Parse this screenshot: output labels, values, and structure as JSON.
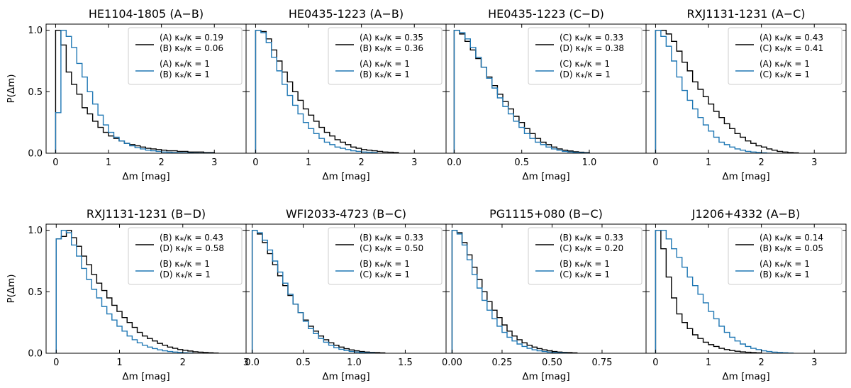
{
  "figure": {
    "shared_xlabel": "Δm [mag]",
    "shared_ylabel": "P(Δm)",
    "series_colors": {
      "black": "#000000",
      "blue": "#1f77b4"
    }
  },
  "chart_data": [
    {
      "type": "histogram-step",
      "title": "HE1104-1805 (A−B)",
      "xlabel": "Δm [mag]",
      "ylabel": "P(Δm)",
      "xlim": [
        -0.18,
        3.6
      ],
      "ylim": [
        0,
        1.05
      ],
      "xticks": [
        0,
        1,
        2,
        3
      ],
      "xtick_labels": [
        "0",
        "1",
        "2",
        "3"
      ],
      "yticks": [
        0,
        0.5,
        1.0
      ],
      "ytick_labels": [
        "0.0",
        "0.5",
        "1.0"
      ],
      "bin_width": 0.1,
      "legend": [
        {
          "series": "black",
          "line1": "(A) κ⁎/κ = 0.19",
          "line2": "(B) κ⁎/κ = 0.06"
        },
        {
          "series": "blue",
          "line1": "(A) κ⁎/κ = 1",
          "line2": "(B) κ⁎/κ = 1"
        }
      ],
      "series": [
        {
          "name": "black",
          "color": "#000000",
          "values": [
            1.0,
            0.88,
            0.66,
            0.56,
            0.48,
            0.37,
            0.32,
            0.26,
            0.21,
            0.17,
            0.14,
            0.12,
            0.1,
            0.08,
            0.07,
            0.06,
            0.05,
            0.04,
            0.035,
            0.03,
            0.025,
            0.02,
            0.02,
            0.015,
            0.015,
            0.01,
            0.01,
            0.01,
            0.005,
            0.005
          ]
        },
        {
          "name": "blue",
          "color": "#1f77b4",
          "values": [
            0.33,
            1.0,
            0.95,
            0.86,
            0.73,
            0.62,
            0.5,
            0.4,
            0.31,
            0.23,
            0.17,
            0.13,
            0.1,
            0.08,
            0.06,
            0.045,
            0.035,
            0.025,
            0.02,
            0.015,
            0.01,
            0.008,
            0.005,
            0.004,
            0.003,
            0.002,
            0.001,
            0.0,
            0.0,
            0.0
          ]
        }
      ]
    },
    {
      "type": "histogram-step",
      "title": "HE0435-1223 (A−B)",
      "xlabel": "Δm [mag]",
      "ylabel": "P(Δm)",
      "xlim": [
        -0.18,
        3.6
      ],
      "ylim": [
        0,
        1.05
      ],
      "xticks": [
        0,
        1,
        2,
        3
      ],
      "xtick_labels": [
        "0",
        "1",
        "2",
        "3"
      ],
      "yticks": [
        0,
        0.5,
        1.0
      ],
      "ytick_labels": [
        "0.0",
        "0.5",
        "1.0"
      ],
      "bin_width": 0.1,
      "legend": [
        {
          "series": "black",
          "line1": "(A) κ⁎/κ = 0.35",
          "line2": "(B) κ⁎/κ = 0.36"
        },
        {
          "series": "blue",
          "line1": "(A) κ⁎/κ = 1",
          "line2": "(B) κ⁎/κ = 1"
        }
      ],
      "series": [
        {
          "name": "black",
          "color": "#000000",
          "values": [
            1.0,
            0.99,
            0.93,
            0.84,
            0.75,
            0.66,
            0.58,
            0.5,
            0.43,
            0.36,
            0.31,
            0.26,
            0.21,
            0.17,
            0.14,
            0.11,
            0.09,
            0.07,
            0.05,
            0.04,
            0.03,
            0.025,
            0.02,
            0.015,
            0.01,
            0.008,
            0.005
          ]
        },
        {
          "name": "blue",
          "color": "#1f77b4",
          "values": [
            1.0,
            0.98,
            0.9,
            0.78,
            0.67,
            0.56,
            0.47,
            0.39,
            0.32,
            0.25,
            0.2,
            0.16,
            0.12,
            0.09,
            0.07,
            0.05,
            0.04,
            0.03,
            0.02,
            0.015,
            0.01,
            0.008,
            0.005
          ]
        }
      ]
    },
    {
      "type": "histogram-step",
      "title": "HE0435-1223 (C−D)",
      "xlabel": "Δm [mag]",
      "ylabel": "P(Δm)",
      "xlim": [
        -0.06,
        1.42
      ],
      "ylim": [
        0,
        1.05
      ],
      "xticks": [
        0.0,
        0.5,
        1.0
      ],
      "xtick_labels": [
        "0.0",
        "0.5",
        "1.0"
      ],
      "yticks": [
        0,
        0.5,
        1.0
      ],
      "ytick_labels": [
        "0.0",
        "0.5",
        "1.0"
      ],
      "bin_width": 0.04,
      "legend": [
        {
          "series": "black",
          "line1": "(C) κ⁎/κ = 0.33",
          "line2": "(D) κ⁎/κ = 0.38"
        },
        {
          "series": "blue",
          "line1": "(C) κ⁎/κ = 1",
          "line2": "(D) κ⁎/κ = 1"
        }
      ],
      "series": [
        {
          "name": "black",
          "color": "#000000",
          "values": [
            1.0,
            0.97,
            0.91,
            0.84,
            0.77,
            0.7,
            0.62,
            0.55,
            0.48,
            0.42,
            0.36,
            0.3,
            0.25,
            0.2,
            0.16,
            0.12,
            0.09,
            0.07,
            0.05,
            0.035,
            0.025,
            0.018,
            0.012,
            0.008,
            0.005
          ]
        },
        {
          "name": "blue",
          "color": "#1f77b4",
          "values": [
            1.0,
            0.98,
            0.93,
            0.86,
            0.78,
            0.7,
            0.61,
            0.53,
            0.45,
            0.38,
            0.32,
            0.26,
            0.21,
            0.16,
            0.12,
            0.09,
            0.07,
            0.05,
            0.035,
            0.025,
            0.015,
            0.01,
            0.006,
            0.004,
            0.002
          ]
        }
      ]
    },
    {
      "type": "histogram-step",
      "title": "RXJ1131-1231 (A−C)",
      "xlabel": "Δm [mag]",
      "ylabel": "P(Δm)",
      "xlim": [
        -0.18,
        3.6
      ],
      "ylim": [
        0,
        1.05
      ],
      "xticks": [
        0,
        1,
        2,
        3
      ],
      "xtick_labels": [
        "0",
        "1",
        "2",
        "3"
      ],
      "yticks": [
        0,
        0.5,
        1.0
      ],
      "ytick_labels": [
        "0.0",
        "0.5",
        "1.0"
      ],
      "bin_width": 0.1,
      "legend": [
        {
          "series": "black",
          "line1": "(A) κ⁎/κ = 0.43",
          "line2": "(C) κ⁎/κ = 0.41"
        },
        {
          "series": "blue",
          "line1": "(A) κ⁎/κ = 1",
          "line2": "(C) κ⁎/κ = 1"
        }
      ],
      "series": [
        {
          "name": "black",
          "color": "#000000",
          "values": [
            1.0,
            1.0,
            0.97,
            0.91,
            0.83,
            0.74,
            0.67,
            0.58,
            0.52,
            0.46,
            0.4,
            0.34,
            0.29,
            0.24,
            0.2,
            0.16,
            0.13,
            0.1,
            0.08,
            0.06,
            0.05,
            0.035,
            0.025,
            0.015,
            0.01,
            0.005,
            0.003
          ]
        },
        {
          "name": "blue",
          "color": "#1f77b4",
          "values": [
            1.0,
            0.95,
            0.87,
            0.75,
            0.62,
            0.51,
            0.43,
            0.36,
            0.29,
            0.23,
            0.18,
            0.13,
            0.09,
            0.07,
            0.05,
            0.035,
            0.025,
            0.015,
            0.01,
            0.006,
            0.003,
            0.0
          ]
        }
      ]
    },
    {
      "type": "histogram-step",
      "title": "RXJ1131-1231 (B−D)",
      "xlabel": "Δm [mag]",
      "ylabel": "P(Δm)",
      "xlim": [
        -0.16,
        3.0
      ],
      "ylim": [
        0,
        1.05
      ],
      "xticks": [
        0,
        1,
        2,
        3
      ],
      "xtick_labels": [
        "0",
        "1",
        "2",
        "3"
      ],
      "yticks": [
        0,
        0.5,
        1.0
      ],
      "ytick_labels": [
        "0.0",
        "0.5",
        "1.0"
      ],
      "bin_width": 0.08,
      "legend": [
        {
          "series": "black",
          "line1": "(B) κ⁎/κ = 0.43",
          "line2": "(D) κ⁎/κ = 0.58"
        },
        {
          "series": "blue",
          "line1": "(B) κ⁎/κ = 1",
          "line2": "(D) κ⁎/κ = 1"
        }
      ],
      "series": [
        {
          "name": "black",
          "color": "#000000",
          "values": [
            0.93,
            0.95,
            1.0,
            0.94,
            0.87,
            0.79,
            0.72,
            0.64,
            0.57,
            0.51,
            0.45,
            0.39,
            0.34,
            0.29,
            0.25,
            0.21,
            0.17,
            0.14,
            0.12,
            0.1,
            0.08,
            0.065,
            0.05,
            0.04,
            0.03,
            0.024,
            0.018,
            0.012,
            0.009,
            0.006,
            0.004,
            0.002
          ]
        },
        {
          "name": "blue",
          "color": "#1f77b4",
          "values": [
            0.93,
            1.0,
            0.98,
            0.88,
            0.79,
            0.69,
            0.6,
            0.52,
            0.45,
            0.38,
            0.32,
            0.27,
            0.22,
            0.18,
            0.14,
            0.11,
            0.085,
            0.065,
            0.05,
            0.038,
            0.028,
            0.02,
            0.014,
            0.01,
            0.007,
            0.004,
            0.002
          ]
        }
      ]
    },
    {
      "type": "histogram-step",
      "title": "WFI2033-4723 (B−C)",
      "xlabel": "Δm [mag]",
      "ylabel": "P(Δm)",
      "xlim": [
        -0.06,
        1.9
      ],
      "ylim": [
        0,
        1.05
      ],
      "xticks": [
        0.0,
        0.5,
        1.0,
        1.5
      ],
      "xtick_labels": [
        "0.0",
        "0.5",
        "1.0",
        "1.5"
      ],
      "yticks": [
        0,
        0.5,
        1.0
      ],
      "ytick_labels": [
        "0.0",
        "0.5",
        "1.0"
      ],
      "bin_width": 0.05,
      "legend": [
        {
          "series": "black",
          "line1": "(B) κ⁎/κ = 0.33",
          "line2": "(C) κ⁎/κ = 0.50"
        },
        {
          "series": "blue",
          "line1": "(B) κ⁎/κ = 1",
          "line2": "(C) κ⁎/κ = 1"
        }
      ],
      "series": [
        {
          "name": "black",
          "color": "#000000",
          "values": [
            1.0,
            0.97,
            0.9,
            0.81,
            0.72,
            0.63,
            0.55,
            0.47,
            0.4,
            0.33,
            0.27,
            0.22,
            0.18,
            0.14,
            0.11,
            0.085,
            0.065,
            0.05,
            0.037,
            0.027,
            0.02,
            0.014,
            0.01,
            0.007,
            0.005,
            0.003
          ]
        },
        {
          "name": "blue",
          "color": "#1f77b4",
          "values": [
            1.0,
            0.98,
            0.92,
            0.84,
            0.75,
            0.66,
            0.57,
            0.48,
            0.4,
            0.33,
            0.26,
            0.2,
            0.16,
            0.12,
            0.09,
            0.065,
            0.045,
            0.032,
            0.022,
            0.015,
            0.01,
            0.006,
            0.004,
            0.002
          ]
        }
      ]
    },
    {
      "type": "histogram-step",
      "title": "PG1115+080 (B−C)",
      "xlabel": "Δm [mag]",
      "ylabel": "P(Δm)",
      "xlim": [
        -0.03,
        0.97
      ],
      "ylim": [
        0,
        1.05
      ],
      "xticks": [
        0.0,
        0.25,
        0.5,
        0.75
      ],
      "xtick_labels": [
        "0.00",
        "0.25",
        "0.50",
        "0.75"
      ],
      "yticks": [
        0,
        0.5,
        1.0
      ],
      "ytick_labels": [
        "0.0",
        "0.5",
        "1.0"
      ],
      "bin_width": 0.025,
      "legend": [
        {
          "series": "black",
          "line1": "(B) κ⁎/κ = 0.33",
          "line2": "(C) κ⁎/κ = 0.20"
        },
        {
          "series": "blue",
          "line1": "(B) κ⁎/κ = 1",
          "line2": "(C) κ⁎/κ = 1"
        }
      ],
      "series": [
        {
          "name": "black",
          "color": "#000000",
          "values": [
            1.0,
            0.98,
            0.9,
            0.8,
            0.7,
            0.6,
            0.5,
            0.42,
            0.35,
            0.29,
            0.23,
            0.18,
            0.14,
            0.11,
            0.085,
            0.065,
            0.05,
            0.038,
            0.028,
            0.02,
            0.014,
            0.01,
            0.007,
            0.005,
            0.003
          ]
        },
        {
          "name": "blue",
          "color": "#1f77b4",
          "values": [
            1.0,
            0.97,
            0.88,
            0.76,
            0.64,
            0.53,
            0.43,
            0.35,
            0.28,
            0.22,
            0.17,
            0.13,
            0.1,
            0.075,
            0.055,
            0.04,
            0.028,
            0.02,
            0.014,
            0.009,
            0.006,
            0.004,
            0.002
          ]
        }
      ]
    },
    {
      "type": "histogram-step",
      "title": "J1206+4332 (A−B)",
      "xlabel": "Δm [mag]",
      "ylabel": "P(Δm)",
      "xlim": [
        -0.18,
        3.6
      ],
      "ylim": [
        0,
        1.05
      ],
      "xticks": [
        0,
        1,
        2,
        3
      ],
      "xtick_labels": [
        "0",
        "1",
        "2",
        "3"
      ],
      "yticks": [
        0,
        0.5,
        1.0
      ],
      "ytick_labels": [
        "0.0",
        "0.5",
        "1.0"
      ],
      "bin_width": 0.1,
      "legend": [
        {
          "series": "black",
          "line1": "(A) κ⁎/κ = 0.14",
          "line2": "(B) κ⁎/κ = 0.05"
        },
        {
          "series": "blue",
          "line1": "(A) κ⁎/κ = 1",
          "line2": "(B) κ⁎/κ = 1"
        }
      ],
      "series": [
        {
          "name": "black",
          "color": "#000000",
          "values": [
            1.0,
            0.85,
            0.62,
            0.45,
            0.32,
            0.25,
            0.2,
            0.15,
            0.12,
            0.09,
            0.07,
            0.055,
            0.04,
            0.03,
            0.022,
            0.016,
            0.011,
            0.008,
            0.005,
            0.003
          ]
        },
        {
          "name": "blue",
          "color": "#1f77b4",
          "values": [
            1.0,
            1.0,
            0.93,
            0.85,
            0.78,
            0.7,
            0.62,
            0.55,
            0.48,
            0.41,
            0.34,
            0.28,
            0.22,
            0.17,
            0.13,
            0.1,
            0.075,
            0.055,
            0.04,
            0.03,
            0.02,
            0.014,
            0.009,
            0.006,
            0.004,
            0.002
          ]
        }
      ]
    }
  ]
}
